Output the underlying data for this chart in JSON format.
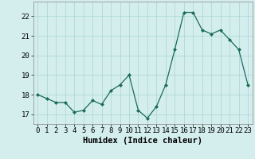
{
  "x": [
    0,
    1,
    2,
    3,
    4,
    5,
    6,
    7,
    8,
    9,
    10,
    11,
    12,
    13,
    14,
    15,
    16,
    17,
    18,
    19,
    20,
    21,
    22,
    23
  ],
  "y": [
    18.0,
    17.8,
    17.6,
    17.6,
    17.1,
    17.2,
    17.7,
    17.5,
    18.2,
    18.5,
    19.0,
    17.2,
    16.8,
    17.4,
    18.5,
    20.3,
    22.2,
    22.2,
    21.3,
    21.1,
    21.3,
    20.8,
    20.3,
    18.5
  ],
  "xlabel": "Humidex (Indice chaleur)",
  "xlim": [
    -0.5,
    23.5
  ],
  "ylim": [
    16.5,
    22.75
  ],
  "yticks": [
    17,
    18,
    19,
    20,
    21,
    22
  ],
  "xticks": [
    0,
    1,
    2,
    3,
    4,
    5,
    6,
    7,
    8,
    9,
    10,
    11,
    12,
    13,
    14,
    15,
    16,
    17,
    18,
    19,
    20,
    21,
    22,
    23
  ],
  "line_color": "#1a6b5a",
  "marker_color": "#1a6b5a",
  "bg_color": "#d4eeee",
  "grid_color": "#a8d4d4",
  "xlabel_fontsize": 7.5,
  "tick_fontsize": 6.5
}
